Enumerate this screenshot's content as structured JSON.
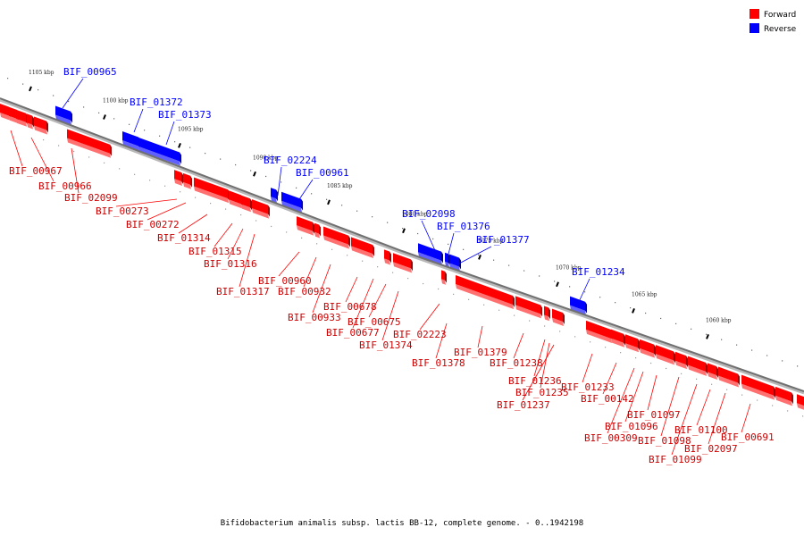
{
  "caption": "Bifidobacterium animalis subsp. lactis BB-12, complete genome. - 0..1942198",
  "legend": [
    {
      "label": "Forward",
      "color": "#ff0000"
    },
    {
      "label": "Reverse",
      "color": "#0000ff"
    }
  ],
  "colors": {
    "forward": "#ff0000",
    "reverse": "#0000ff",
    "backbone": "#808080"
  },
  "ticks": [
    {
      "label": "1105 kbp"
    },
    {
      "label": "1100 kbp"
    },
    {
      "label": "1095 kbp"
    },
    {
      "label": "1090 kbp"
    },
    {
      "label": "1085 kbp"
    },
    {
      "label": "1080 kbp"
    },
    {
      "label": "1075 kbp"
    },
    {
      "label": "1070 kbp"
    },
    {
      "label": "1065 kbp"
    },
    {
      "label": "1060 kbp"
    }
  ],
  "reverse_genes": [
    "BIF_00965",
    "BIF_01372",
    "BIF_01373",
    "BIF_02224",
    "BIF_00961",
    "BIF_02098",
    "BIF_01376",
    "BIF_01377",
    "BIF_01234"
  ],
  "forward_genes": [
    "BIF_00967",
    "BIF_00966",
    "BIF_02099",
    "BIF_00273",
    "BIF_00272",
    "BIF_01314",
    "BIF_01315",
    "BIF_01316",
    "BIF_01317",
    "BIF_00960",
    "BIF_00932",
    "BIF_00933",
    "BIF_00678",
    "BIF_00677",
    "BIF_00675",
    "BIF_01374",
    "BIF_02223",
    "BIF_01378",
    "BIF_01379",
    "BIF_01238",
    "BIF_01236",
    "BIF_01235",
    "BIF_01237",
    "BIF_01233",
    "BIF_00142",
    "BIF_01097",
    "BIF_01096",
    "BIF_00309",
    "BIF_01098",
    "BIF_01099",
    "BIF_01100",
    "BIF_02097",
    "BIF_00691"
  ]
}
